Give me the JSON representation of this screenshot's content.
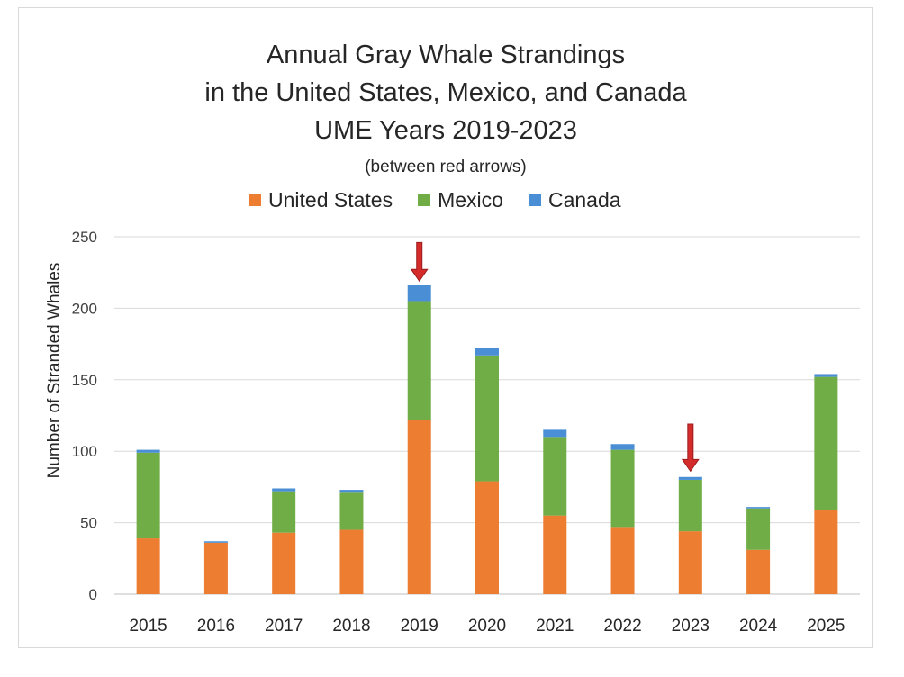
{
  "chart_data": {
    "type": "bar",
    "stacked": true,
    "title_lines": [
      "Annual Gray Whale Strandings",
      "in the United States, Mexico, and Canada",
      "UME Years 2019-2023"
    ],
    "subtitle": "(between red arrows)",
    "xlabel": "",
    "ylabel": "Number of Stranded Whales",
    "ylim": [
      0,
      250
    ],
    "yticks": [
      0,
      50,
      100,
      150,
      200,
      250
    ],
    "grid": true,
    "legend_position": "top",
    "categories": [
      "2015",
      "2016",
      "2017",
      "2018",
      "2019",
      "2020",
      "2021",
      "2022",
      "2023",
      "2024",
      "2025"
    ],
    "series": [
      {
        "name": "United States",
        "color": "#ed7d31",
        "values": [
          39,
          36,
          43,
          45,
          122,
          79,
          55,
          47,
          44,
          31,
          59
        ]
      },
      {
        "name": "Mexico",
        "color": "#70ad47",
        "values": [
          60,
          0,
          29,
          26,
          83,
          88,
          55,
          54,
          36,
          29,
          93
        ]
      },
      {
        "name": "Canada",
        "color": "#4a8fd6",
        "values": [
          2,
          1,
          2,
          2,
          11,
          5,
          5,
          4,
          2,
          1,
          2
        ]
      }
    ],
    "annotations": [
      {
        "type": "arrow",
        "color": "#d42b2b",
        "category": "2019",
        "from_value": 246,
        "to_value": 219
      },
      {
        "type": "arrow",
        "color": "#d42b2b",
        "category": "2023",
        "from_value": 119,
        "to_value": 86
      }
    ]
  }
}
